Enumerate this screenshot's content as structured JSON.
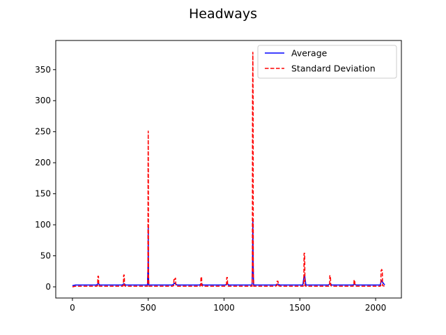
{
  "chart_data": {
    "type": "line",
    "title": "Headways",
    "xlim": [
      -110,
      2170
    ],
    "ylim": [
      -18,
      397
    ],
    "xticks": [
      0,
      500,
      1000,
      1500,
      2000
    ],
    "yticks": [
      0,
      50,
      100,
      150,
      200,
      250,
      300,
      350
    ],
    "grid": false,
    "legend_position": "top-right",
    "series": [
      {
        "name": "Average",
        "color": "#0000ff",
        "style": "solid",
        "x": [
          0,
          20,
          160,
          168,
          172,
          180,
          330,
          338,
          342,
          350,
          495,
          499,
          500,
          501,
          503,
          510,
          660,
          670,
          675,
          680,
          690,
          840,
          848,
          852,
          860,
          1010,
          1018,
          1022,
          1030,
          1185,
          1188,
          1190,
          1192,
          1195,
          1200,
          1340,
          1350,
          1356,
          1370,
          1520,
          1528,
          1532,
          1540,
          1690,
          1698,
          1702,
          1710,
          1850,
          1858,
          1862,
          1870,
          2030,
          2036,
          2040,
          2044,
          2060
        ],
        "y": [
          2,
          3,
          3,
          5,
          5,
          3,
          3,
          5,
          5,
          3,
          3,
          40,
          95,
          40,
          3,
          3,
          3,
          5,
          6,
          5,
          3,
          3,
          5,
          5,
          3,
          3,
          5,
          5,
          3,
          3,
          40,
          108,
          40,
          3,
          3,
          3,
          4,
          4,
          3,
          3,
          18,
          18,
          3,
          3,
          5,
          5,
          3,
          3,
          4,
          4,
          3,
          3,
          8,
          10,
          8,
          3
        ]
      },
      {
        "name": "Standard Deviation",
        "color": "#ff0000",
        "style": "dashed",
        "x": [
          0,
          20,
          160,
          166,
          168,
          172,
          174,
          180,
          330,
          336,
          338,
          342,
          344,
          350,
          495,
          498,
          499,
          500,
          501,
          502,
          505,
          660,
          668,
          670,
          675,
          680,
          682,
          690,
          840,
          846,
          848,
          852,
          854,
          860,
          1010,
          1016,
          1018,
          1022,
          1024,
          1030,
          1185,
          1187,
          1188,
          1190,
          1192,
          1193,
          1196,
          1340,
          1348,
          1350,
          1356,
          1358,
          1370,
          1520,
          1526,
          1528,
          1532,
          1534,
          1540,
          1690,
          1696,
          1698,
          1702,
          1704,
          1710,
          1850,
          1856,
          1858,
          1862,
          1864,
          1870,
          2030,
          2034,
          2036,
          2040,
          2044,
          2046,
          2060
        ],
        "y": [
          0,
          1,
          1,
          2,
          17,
          17,
          2,
          1,
          1,
          2,
          19,
          19,
          2,
          1,
          1,
          20,
          200,
          251,
          200,
          20,
          1,
          1,
          2,
          14,
          12,
          14,
          2,
          1,
          1,
          2,
          16,
          16,
          2,
          1,
          1,
          2,
          15,
          15,
          2,
          1,
          1,
          30,
          300,
          378,
          300,
          30,
          1,
          1,
          2,
          9,
          9,
          2,
          1,
          1,
          2,
          54,
          54,
          2,
          1,
          1,
          2,
          18,
          18,
          2,
          1,
          1,
          2,
          11,
          11,
          2,
          1,
          1,
          2,
          26,
          28,
          26,
          2,
          1
        ]
      }
    ]
  }
}
